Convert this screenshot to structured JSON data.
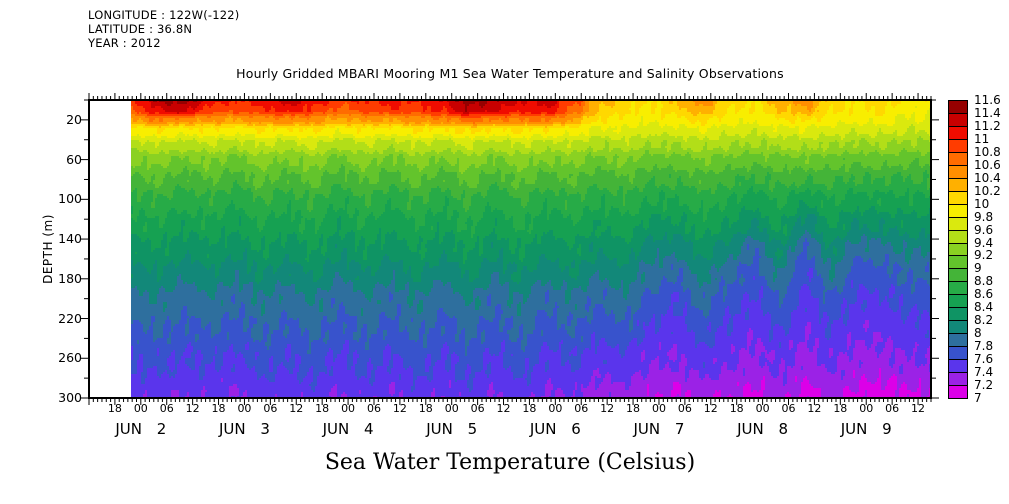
{
  "header": {
    "longitude": "LONGITUDE : 122W(-122)",
    "latitude": "LATITUDE : 36.8N",
    "year": "YEAR : 2012"
  },
  "title": "Hourly Gridded MBARI Mooring M1 Sea Water Temperature and Salinity Observations",
  "caption": "Sea Water Temperature (Celsius)",
  "chart_data": {
    "type": "heatmap",
    "subtype": "filled-contour time-depth section",
    "title": "Hourly Gridded MBARI Mooring M1 Sea Water Temperature and Salinity Observations",
    "xlabel": "",
    "ylabel": "DEPTH (m)",
    "plot_bg": "#FFFFFF",
    "x_axis": {
      "unit": "hours since JUN 1 2012 00:00",
      "range": [
        12,
        207
      ],
      "minor_tick_step_hours": 1,
      "major_tick_step_hours": 6,
      "hour_tick_labels": [
        {
          "t": 18,
          "label": "18"
        },
        {
          "t": 24,
          "label": "00"
        },
        {
          "t": 30,
          "label": "06"
        },
        {
          "t": 36,
          "label": "12"
        },
        {
          "t": 42,
          "label": "18"
        },
        {
          "t": 48,
          "label": "00"
        },
        {
          "t": 54,
          "label": "06"
        },
        {
          "t": 60,
          "label": "12"
        },
        {
          "t": 66,
          "label": "18"
        },
        {
          "t": 72,
          "label": "00"
        },
        {
          "t": 78,
          "label": "06"
        },
        {
          "t": 84,
          "label": "12"
        },
        {
          "t": 90,
          "label": "18"
        },
        {
          "t": 96,
          "label": "00"
        },
        {
          "t": 102,
          "label": "06"
        },
        {
          "t": 108,
          "label": "12"
        },
        {
          "t": 114,
          "label": "18"
        },
        {
          "t": 120,
          "label": "00"
        },
        {
          "t": 126,
          "label": "06"
        },
        {
          "t": 132,
          "label": "12"
        },
        {
          "t": 138,
          "label": "18"
        },
        {
          "t": 144,
          "label": "00"
        },
        {
          "t": 150,
          "label": "06"
        },
        {
          "t": 156,
          "label": "12"
        },
        {
          "t": 162,
          "label": "18"
        },
        {
          "t": 168,
          "label": "00"
        },
        {
          "t": 174,
          "label": "06"
        },
        {
          "t": 180,
          "label": "12"
        },
        {
          "t": 186,
          "label": "18"
        },
        {
          "t": 192,
          "label": "00"
        },
        {
          "t": 198,
          "label": "06"
        },
        {
          "t": 204,
          "label": "12"
        }
      ],
      "day_labels": [
        {
          "t": 24,
          "label": "JUN 2"
        },
        {
          "t": 48,
          "label": "JUN 3"
        },
        {
          "t": 72,
          "label": "JUN 4"
        },
        {
          "t": 96,
          "label": "JUN 5"
        },
        {
          "t": 120,
          "label": "JUN 6"
        },
        {
          "t": 144,
          "label": "JUN 7"
        },
        {
          "t": 168,
          "label": "JUN 8"
        },
        {
          "t": 192,
          "label": "JUN 9"
        }
      ]
    },
    "y_axis": {
      "unit": "m",
      "range": [
        0,
        300
      ],
      "labeled_ticks": [
        20,
        60,
        100,
        140,
        180,
        220,
        260,
        300
      ],
      "minor_ticks": [
        0,
        40,
        80,
        120,
        160,
        200,
        240,
        280
      ]
    },
    "colorbar": {
      "min": 7,
      "max": 11.6,
      "step": 0.2,
      "boundary_labels_top_to_bottom": [
        "11.6",
        "11.4",
        "11.2",
        "11",
        "10.8",
        "10.6",
        "10.4",
        "10.2",
        "10",
        "9.8",
        "9.6",
        "9.4",
        "9.2",
        "9",
        "8.8",
        "8.6",
        "8.4",
        "8.2",
        "8",
        "7.8",
        "7.6",
        "7.4",
        "7.2",
        "7"
      ],
      "segment_colors_top_to_bottom": [
        "#960000",
        "#C80000",
        "#F00C00",
        "#FF3C00",
        "#FF6C00",
        "#FF8E00",
        "#FFB000",
        "#FFD800",
        "#F8EE00",
        "#DAE90E",
        "#B2DE18",
        "#8AD122",
        "#63C42C",
        "#44B438",
        "#27AB47",
        "#16A152",
        "#0F9464",
        "#128879",
        "#2E6F9E",
        "#3853CC",
        "#5A35EC",
        "#9B22E6",
        "#DC00E8"
      ]
    },
    "grid": {
      "data_start_hour": 21.5,
      "times_hours": [
        22,
        28,
        34,
        40,
        46,
        52,
        58,
        64,
        70,
        76,
        82,
        88,
        94,
        100,
        106,
        112,
        118,
        124,
        130,
        136,
        142,
        148,
        154,
        160,
        166,
        172,
        178,
        184,
        190,
        196,
        202,
        208
      ],
      "depths_m": [
        0,
        10,
        20,
        30,
        45,
        60,
        80,
        100,
        125,
        150,
        175,
        200,
        230,
        260,
        300
      ],
      "temperatures_c": [
        [
          11.0,
          10.8,
          10.4,
          9.9,
          9.5,
          9.2,
          8.95,
          8.72,
          8.52,
          8.32,
          8.12,
          7.92,
          7.78,
          7.62,
          7.45
        ],
        [
          11.4,
          11.2,
          10.6,
          10.0,
          9.58,
          9.28,
          9.02,
          8.78,
          8.58,
          8.38,
          8.18,
          7.98,
          7.82,
          7.66,
          7.48
        ],
        [
          11.5,
          11.3,
          10.5,
          9.92,
          9.5,
          9.18,
          8.9,
          8.68,
          8.47,
          8.27,
          8.07,
          7.87,
          7.74,
          7.58,
          7.42
        ],
        [
          11.1,
          10.9,
          10.45,
          9.98,
          9.56,
          9.25,
          9.0,
          8.76,
          8.56,
          8.36,
          8.16,
          7.96,
          7.81,
          7.64,
          7.46
        ],
        [
          11.0,
          10.85,
          10.4,
          9.9,
          9.48,
          9.15,
          8.88,
          8.65,
          8.45,
          8.25,
          8.05,
          7.85,
          7.72,
          7.56,
          7.4
        ],
        [
          11.1,
          10.95,
          10.5,
          10.0,
          9.6,
          9.3,
          9.05,
          8.8,
          8.6,
          8.4,
          8.2,
          8.0,
          7.84,
          7.68,
          7.5
        ],
        [
          11.3,
          11.1,
          10.55,
          9.95,
          9.52,
          9.2,
          8.92,
          8.7,
          8.5,
          8.3,
          8.1,
          7.9,
          7.75,
          7.6,
          7.44
        ],
        [
          11.1,
          10.95,
          10.5,
          10.02,
          9.62,
          9.32,
          9.06,
          8.82,
          8.62,
          8.42,
          8.22,
          8.02,
          7.86,
          7.7,
          7.52
        ],
        [
          10.9,
          10.75,
          10.35,
          9.88,
          9.46,
          9.14,
          8.87,
          8.64,
          8.44,
          8.24,
          8.04,
          7.84,
          7.71,
          7.55,
          7.4
        ],
        [
          11.0,
          10.85,
          10.45,
          9.98,
          9.58,
          9.28,
          9.03,
          8.79,
          8.59,
          8.39,
          8.19,
          7.99,
          7.83,
          7.67,
          7.49
        ],
        [
          11.1,
          10.95,
          10.4,
          9.9,
          9.48,
          9.16,
          8.89,
          8.66,
          8.46,
          8.26,
          8.06,
          7.86,
          7.73,
          7.57,
          7.41
        ],
        [
          11.0,
          10.9,
          10.5,
          10.0,
          9.6,
          9.3,
          9.05,
          8.81,
          8.61,
          8.41,
          8.21,
          8.01,
          7.85,
          7.69,
          7.51
        ],
        [
          11.2,
          11.05,
          10.55,
          9.94,
          9.5,
          9.18,
          8.9,
          8.67,
          8.47,
          8.27,
          8.07,
          7.87,
          7.73,
          7.57,
          7.42
        ],
        [
          11.5,
          11.35,
          10.7,
          10.05,
          9.62,
          9.32,
          9.07,
          8.83,
          8.63,
          8.43,
          8.23,
          8.03,
          7.87,
          7.7,
          7.52
        ],
        [
          11.4,
          11.25,
          10.6,
          9.95,
          9.5,
          9.17,
          8.89,
          8.66,
          8.45,
          8.25,
          8.05,
          7.85,
          7.72,
          7.56,
          7.4
        ],
        [
          11.2,
          11.05,
          10.6,
          10.02,
          9.6,
          9.3,
          9.06,
          8.82,
          8.62,
          8.42,
          8.22,
          8.02,
          7.86,
          7.69,
          7.5
        ],
        [
          11.3,
          11.15,
          10.65,
          9.96,
          9.52,
          9.2,
          8.92,
          8.68,
          8.47,
          8.26,
          8.05,
          7.84,
          7.7,
          7.54,
          7.38
        ],
        [
          10.9,
          10.75,
          10.4,
          9.9,
          9.55,
          9.26,
          9.0,
          8.77,
          8.57,
          8.37,
          8.17,
          7.97,
          7.8,
          7.62,
          7.42
        ],
        [
          10.3,
          10.2,
          10.0,
          9.75,
          9.45,
          9.15,
          8.88,
          8.65,
          8.44,
          8.23,
          8.02,
          7.82,
          7.68,
          7.5,
          7.3
        ],
        [
          10.1,
          10.05,
          9.95,
          9.78,
          9.5,
          9.22,
          8.96,
          8.73,
          8.53,
          8.33,
          8.13,
          7.93,
          7.75,
          7.55,
          7.32
        ],
        [
          10.0,
          9.95,
          9.85,
          9.68,
          9.4,
          9.1,
          8.84,
          8.6,
          8.36,
          8.1,
          7.92,
          7.74,
          7.58,
          7.44,
          7.25
        ],
        [
          10.2,
          10.1,
          9.95,
          9.72,
          9.42,
          9.12,
          8.85,
          8.6,
          8.35,
          8.05,
          7.8,
          7.62,
          7.5,
          7.4,
          7.18
        ],
        [
          10.5,
          10.35,
          10.05,
          9.8,
          9.5,
          9.2,
          8.93,
          8.7,
          8.5,
          8.28,
          8.08,
          7.88,
          7.7,
          7.52,
          7.28
        ],
        [
          10.1,
          10.02,
          9.9,
          9.7,
          9.42,
          9.13,
          8.86,
          8.62,
          8.4,
          8.12,
          7.88,
          7.7,
          7.56,
          7.44,
          7.22
        ],
        [
          10.0,
          9.95,
          9.85,
          9.66,
          9.38,
          9.08,
          8.78,
          8.5,
          8.22,
          7.82,
          7.7,
          7.58,
          7.46,
          7.34,
          7.15
        ],
        [
          10.3,
          10.18,
          9.98,
          9.74,
          9.44,
          9.14,
          8.87,
          8.64,
          8.45,
          8.2,
          8.0,
          7.8,
          7.62,
          7.46,
          7.28
        ],
        [
          10.5,
          10.35,
          10.02,
          9.76,
          9.46,
          9.14,
          8.82,
          8.45,
          8.1,
          7.78,
          7.62,
          7.52,
          7.44,
          7.32,
          7.12
        ],
        [
          10.1,
          10.02,
          9.9,
          9.7,
          9.42,
          9.12,
          8.85,
          8.62,
          8.42,
          8.18,
          7.98,
          7.78,
          7.6,
          7.45,
          7.25
        ],
        [
          10.0,
          9.94,
          9.84,
          9.64,
          9.36,
          9.06,
          8.78,
          8.52,
          8.2,
          7.9,
          7.7,
          7.56,
          7.45,
          7.33,
          7.14
        ],
        [
          10.1,
          10.02,
          9.9,
          9.68,
          9.4,
          9.1,
          8.8,
          8.55,
          8.25,
          7.92,
          7.72,
          7.58,
          7.46,
          7.34,
          7.1
        ],
        [
          9.9,
          9.85,
          9.76,
          9.6,
          9.34,
          9.05,
          8.79,
          8.56,
          8.32,
          8.05,
          7.84,
          7.68,
          7.54,
          7.4,
          7.18
        ],
        [
          9.9,
          9.86,
          9.78,
          9.62,
          9.36,
          9.07,
          8.8,
          8.57,
          8.3,
          8.02,
          7.82,
          7.66,
          7.52,
          7.4,
          7.2
        ]
      ]
    }
  }
}
